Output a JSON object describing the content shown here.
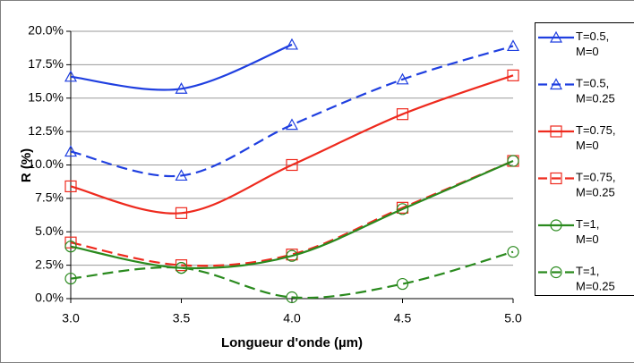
{
  "chart_data": {
    "type": "line",
    "x_label": "Longueur d'onde (µm)",
    "y_label": "R (%)",
    "x": [
      3.0,
      3.5,
      4.0,
      4.5,
      5.0
    ],
    "xlim": [
      3.0,
      5.0
    ],
    "xticks": [
      {
        "value": 3.0,
        "label": "3.0"
      },
      {
        "value": 3.5,
        "label": "3.5"
      },
      {
        "value": 4.0,
        "label": "4.0"
      },
      {
        "value": 4.5,
        "label": "4.5"
      },
      {
        "value": 5.0,
        "label": "5.0"
      }
    ],
    "ylim": [
      0,
      20
    ],
    "yticks": [
      {
        "value": 0,
        "label": "0.0%"
      },
      {
        "value": 2.5,
        "label": "2.5%"
      },
      {
        "value": 5,
        "label": "5.0%"
      },
      {
        "value": 7.5,
        "label": "7.5%"
      },
      {
        "value": 10,
        "label": "10.0%"
      },
      {
        "value": 12.5,
        "label": "12.5%"
      },
      {
        "value": 15,
        "label": "15.0%"
      },
      {
        "value": 17.5,
        "label": "17.5%"
      },
      {
        "value": 20,
        "label": "20.0%"
      }
    ],
    "grid": true,
    "smooth": true,
    "legend": "right",
    "series": [
      {
        "name": "T=0.5, M=0",
        "color": "#1f3fe0",
        "marker": "triangle",
        "dashed": false,
        "values": [
          16.6,
          15.7,
          19.0,
          null,
          null
        ]
      },
      {
        "name": "T=0.5, M=0.25",
        "color": "#1f3fe0",
        "marker": "triangle",
        "dashed": true,
        "values": [
          11.0,
          9.2,
          13.0,
          16.4,
          18.9
        ]
      },
      {
        "name": "T=0.75, M=0",
        "color": "#ee2a1e",
        "marker": "square",
        "dashed": false,
        "values": [
          8.4,
          6.4,
          10.0,
          13.8,
          16.7
        ]
      },
      {
        "name": "T=0.75, M=0.25",
        "color": "#ee2a1e",
        "marker": "square",
        "dashed": true,
        "values": [
          4.2,
          2.5,
          3.3,
          6.8,
          10.3
        ]
      },
      {
        "name": "T=1, M=0",
        "color": "#2a8a1e",
        "marker": "circle",
        "dashed": false,
        "values": [
          3.9,
          2.3,
          3.2,
          6.7,
          10.3
        ]
      },
      {
        "name": "T=1, M=0.25",
        "color": "#2a8a1e",
        "marker": "circle",
        "dashed": true,
        "values": [
          1.5,
          2.3,
          0.1,
          1.1,
          3.5
        ]
      }
    ]
  }
}
